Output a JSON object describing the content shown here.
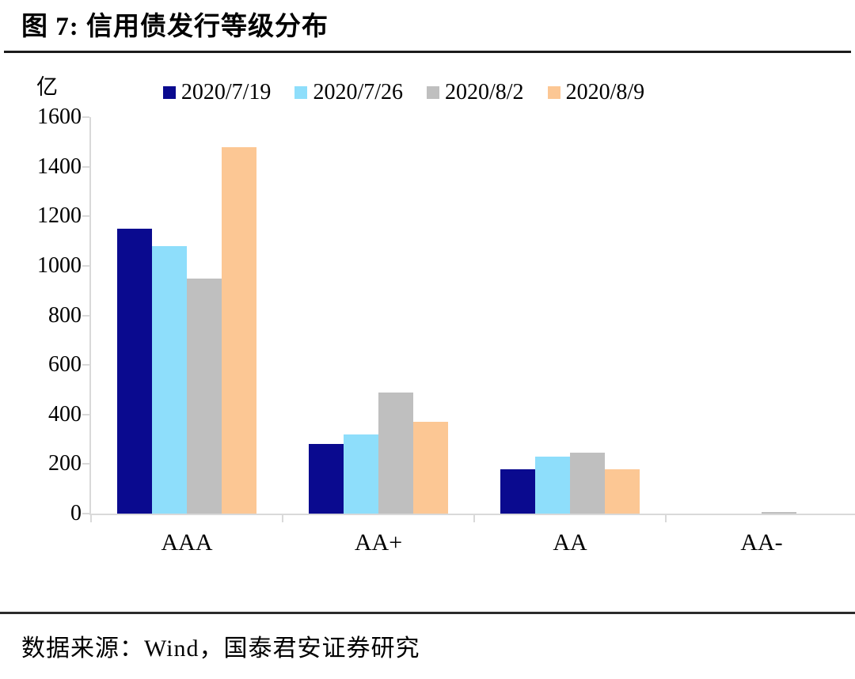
{
  "figure": {
    "title": "图 7: 信用债发行等级分布",
    "unit_label": "亿",
    "source": "数据来源：Wind，国泰君安证券研究"
  },
  "chart_data": {
    "type": "bar",
    "title": "图 7: 信用债发行等级分布",
    "categories": [
      "AAA",
      "AA+",
      "AA",
      "AA-"
    ],
    "series": [
      {
        "name": "2020/7/19",
        "color": "#0A0A8F",
        "values": [
          1150,
          280,
          180,
          0
        ]
      },
      {
        "name": "2020/7/26",
        "color": "#8EDEFB",
        "values": [
          1080,
          320,
          230,
          0
        ]
      },
      {
        "name": "2020/8/2",
        "color": "#BFBFBF",
        "values": [
          950,
          490,
          245,
          5
        ]
      },
      {
        "name": "2020/8/9",
        "color": "#FCC794",
        "values": [
          1480,
          370,
          180,
          0
        ]
      }
    ],
    "xlabel": "",
    "ylabel": "亿",
    "ylim": [
      0,
      1600
    ],
    "ytick_step": 200,
    "grid": false,
    "legend_position": "top-center"
  },
  "colors": {
    "axis": "#D9D9D9",
    "rule_top": "#1c1c1c",
    "rule_bottom": "#2b2b2b",
    "text": "#000000"
  }
}
